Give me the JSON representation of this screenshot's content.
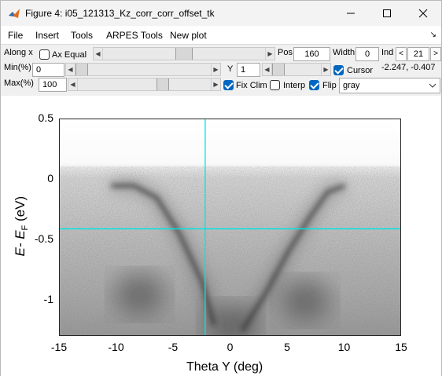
{
  "window": {
    "title": "Figure 4: i05_121313_Kz_corr_corr_offset_tk",
    "icon": "matlab-figure-icon"
  },
  "menu": [
    "File",
    "Insert",
    "Tools",
    "ARPES Tools",
    "New plot"
  ],
  "controls": {
    "along_label": "Along x",
    "ax_equal_label": "Ax Equal",
    "ax_equal_checked": false,
    "pos_label": "Pos",
    "pos_value": "160",
    "width_label": "Width",
    "width_value": "0",
    "ind_label": "Ind",
    "ind_value": "21",
    "ind_dec": "<",
    "ind_inc": ">",
    "min_label": "Min(%)",
    "min_value": "0",
    "y_label": "Y",
    "y_value": "1",
    "cursor_label": "Cursor",
    "cursor_checked": true,
    "cursor_readout": "-2.247, -0.407",
    "max_label": "Max(%)",
    "max_value": "100",
    "fix_clim_label": "Fix Clim",
    "fix_clim_checked": true,
    "interp_label": "Interp",
    "interp_checked": false,
    "flip_label": "Flip",
    "flip_checked": true,
    "colormap_value": "gray"
  },
  "chart_data": {
    "type": "heatmap",
    "colormap": "gray (inverted)",
    "xlabel": "Theta Y (deg)",
    "ylabel_main": "E- E",
    "ylabel_sub": "F",
    "ylabel_unit": " (eV)",
    "xlim": [
      -15,
      15
    ],
    "ylim": [
      -1.3,
      0.5
    ],
    "xticks": [
      -15,
      -10,
      -5,
      0,
      5,
      10,
      15
    ],
    "xtick_labels": [
      "-15",
      "-10",
      "-5",
      "0",
      "5",
      "10",
      "15"
    ],
    "yticks": [
      0.5,
      0,
      -0.5,
      -1
    ],
    "ytick_labels": [
      "0.5",
      "0",
      "-0.5",
      "-1"
    ],
    "cursor": {
      "x": -2.247,
      "y": -0.407,
      "color": "#00e5e5"
    },
    "fermi_edge": 0.05,
    "features": [
      {
        "name": "left-arc",
        "x": [
          -10.5,
          -8.5,
          -6.5,
          -4.5,
          -2.5,
          -1.5
        ],
        "y": [
          -0.05,
          -0.05,
          -0.15,
          -0.45,
          -0.85,
          -1.2
        ]
      },
      {
        "name": "right-arc",
        "x": [
          1.0,
          3.0,
          5.0,
          7.0,
          8.5,
          10.0
        ],
        "y": [
          -1.25,
          -0.95,
          -0.6,
          -0.3,
          -0.1,
          -0.05
        ]
      },
      {
        "name": "bottom-left-blob",
        "x": -8,
        "y": -0.95
      },
      {
        "name": "bottom-center-blob",
        "x": 0,
        "y": -1.2
      },
      {
        "name": "bottom-right-blob",
        "x": 6.5,
        "y": -1.0
      }
    ]
  }
}
